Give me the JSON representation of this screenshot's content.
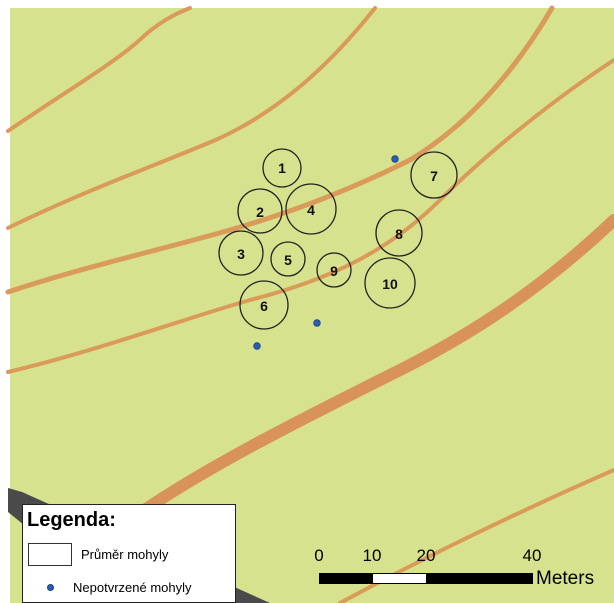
{
  "map": {
    "colors": {
      "background": "#d7e28f",
      "contour": "#d99a5a",
      "contour_major": "#d9925a",
      "mound_outline": "#222222",
      "unconfirmed_point": "#2a5fb0",
      "road": "#4a4a4a"
    },
    "mounds": [
      {
        "label": "1"
      },
      {
        "label": "2"
      },
      {
        "label": "3"
      },
      {
        "label": "4"
      },
      {
        "label": "5"
      },
      {
        "label": "6"
      },
      {
        "label": "7"
      },
      {
        "label": "8"
      },
      {
        "label": "9"
      },
      {
        "label": "10"
      }
    ],
    "unconfirmed_count": 3
  },
  "legend": {
    "title": "Legenda:",
    "items": [
      {
        "label": "Průměr mohyly",
        "symbol": "circle-outline-swatch"
      },
      {
        "label": "Nepotvrzené mohyly",
        "symbol": "blue-dot"
      }
    ]
  },
  "scalebar": {
    "ticks": [
      "0",
      "10",
      "20",
      "40"
    ],
    "units": "Meters"
  }
}
